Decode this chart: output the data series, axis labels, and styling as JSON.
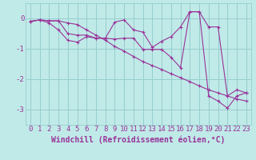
{
  "background_color": "#c0eae8",
  "grid_color": "#96cece",
  "line_color": "#993399",
  "xlabel": "Windchill (Refroidissement éolien,°C)",
  "xlabel_fontsize": 7,
  "tick_fontsize": 6.5,
  "xlim": [
    -0.5,
    23.5
  ],
  "ylim": [
    -3.5,
    0.5
  ],
  "yticks": [
    0,
    -1,
    -2,
    -3
  ],
  "xticks": [
    0,
    1,
    2,
    3,
    4,
    5,
    6,
    7,
    8,
    9,
    10,
    11,
    12,
    13,
    14,
    15,
    16,
    17,
    18,
    19,
    20,
    21,
    22,
    23
  ],
  "line1_y": [
    -0.1,
    -0.05,
    -0.08,
    -0.08,
    -0.5,
    -0.55,
    -0.55,
    -0.65,
    -0.65,
    -0.12,
    -0.05,
    -0.38,
    -0.45,
    -0.95,
    -0.75,
    -0.6,
    -0.28,
    0.22,
    0.22,
    -0.28,
    -0.28,
    -2.55,
    -2.35,
    -2.45
  ],
  "line2_y": [
    -0.1,
    -0.05,
    -0.15,
    -0.38,
    -0.72,
    -0.78,
    -0.6,
    -0.65,
    -0.65,
    -0.68,
    -0.65,
    -0.65,
    -1.02,
    -1.02,
    -1.02,
    -1.28,
    -1.62,
    0.22,
    0.22,
    -2.55,
    -2.72,
    -2.95,
    -2.55,
    -2.45
  ],
  "line3_y": [
    -0.1,
    -0.05,
    -0.08,
    -0.08,
    -0.15,
    -0.2,
    -0.38,
    -0.55,
    -0.72,
    -0.92,
    -1.08,
    -1.25,
    -1.42,
    -1.55,
    -1.68,
    -1.82,
    -1.95,
    -2.08,
    -2.22,
    -2.35,
    -2.45,
    -2.55,
    -2.65,
    -2.72
  ]
}
